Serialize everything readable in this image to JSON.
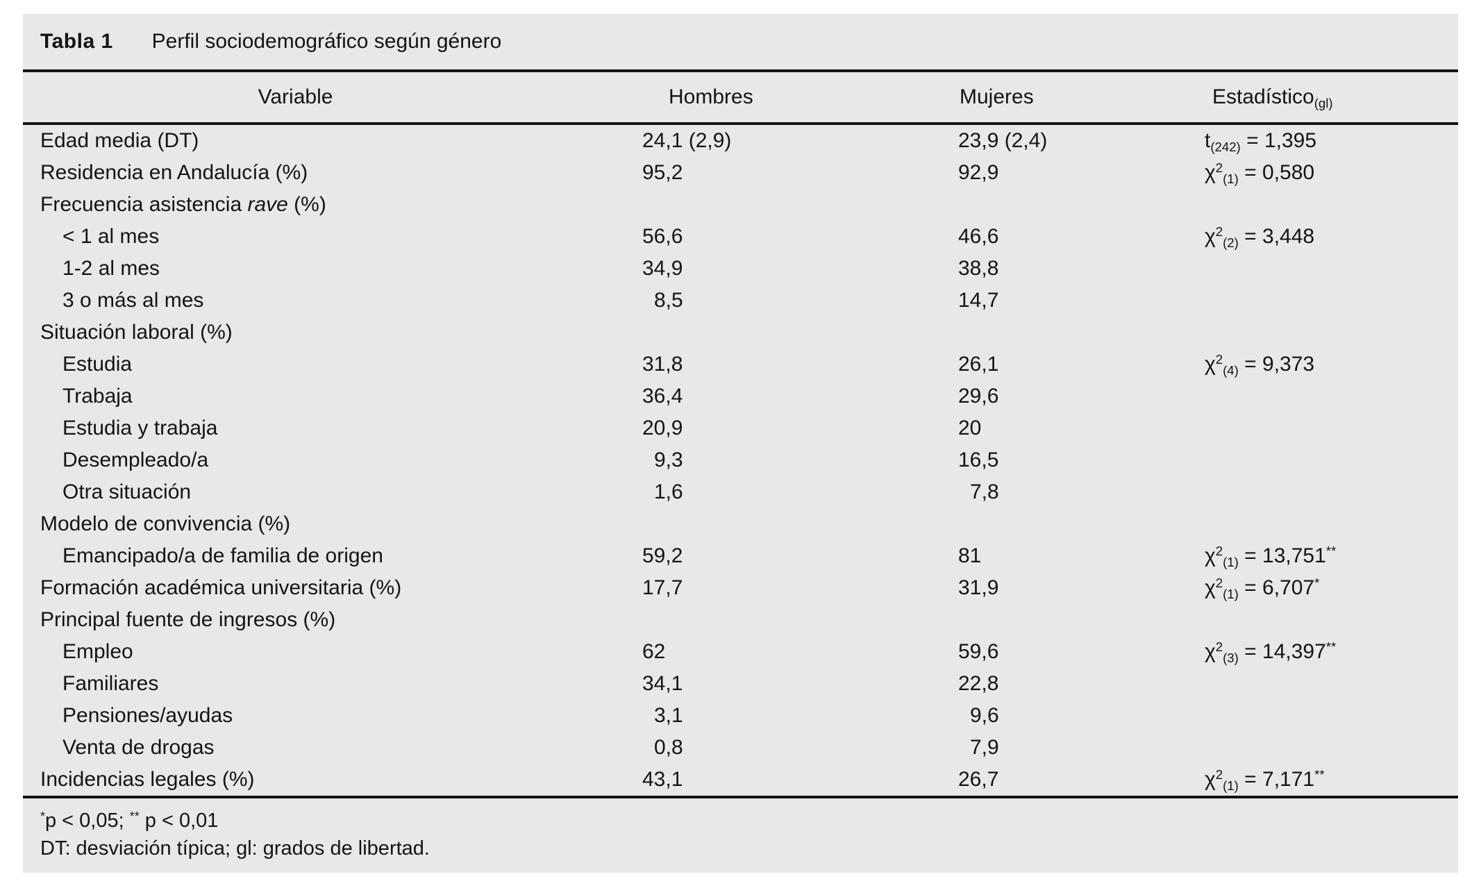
{
  "title": {
    "label": "Tabla 1",
    "text": "Perfil sociodemográfico según género"
  },
  "header": {
    "variable": "Variable",
    "hombres": "Hombres",
    "mujeres": "Mujeres",
    "estadistico": "Estadístico",
    "estadistico_sub": "(gl)"
  },
  "rows": [
    {
      "label": "Edad media (DT)",
      "indent": 0,
      "hombres": "24,1 (2,9)",
      "mujeres": "23,9 (2,4)",
      "stat": {
        "base": "t",
        "sup": "",
        "sub": "(242)",
        "eq": "=",
        "value": "1,395",
        "stars": ""
      }
    },
    {
      "label": "Residencia en Andalucía (%)",
      "indent": 0,
      "hombres": "95,2",
      "mujeres": "92,9",
      "stat": {
        "base": "χ",
        "sup": "2",
        "sub": "(1)",
        "eq": "=",
        "value": "0,580",
        "stars": ""
      }
    },
    {
      "label_parts": [
        {
          "t": "Frecuencia asistencia "
        },
        {
          "t": "rave",
          "italic": true
        },
        {
          "t": " (%)"
        }
      ],
      "indent": 0
    },
    {
      "label": "< 1 al mes",
      "indent": 1,
      "hombres": "56,6",
      "mujeres": "46,6",
      "stat": {
        "base": "χ",
        "sup": "2",
        "sub": "(2)",
        "eq": "=",
        "value": "3,448",
        "stars": ""
      }
    },
    {
      "label": "1-2 al mes",
      "indent": 1,
      "hombres": "34,9",
      "mujeres": "38,8"
    },
    {
      "label": "3 o más al mes",
      "indent": 1,
      "hombres": "8,5",
      "mujeres": "14,7"
    },
    {
      "label": "Situación laboral (%)",
      "indent": 0
    },
    {
      "label": "Estudia",
      "indent": 1,
      "hombres": "31,8",
      "mujeres": "26,1",
      "stat": {
        "base": "χ",
        "sup": "2",
        "sub": "(4)",
        "eq": "=",
        "value": "9,373",
        "stars": ""
      }
    },
    {
      "label": "Trabaja",
      "indent": 1,
      "hombres": "36,4",
      "mujeres": "29,6"
    },
    {
      "label": "Estudia y trabaja",
      "indent": 1,
      "hombres": "20,9",
      "mujeres": "20"
    },
    {
      "label": "Desempleado/a",
      "indent": 1,
      "hombres": "9,3",
      "mujeres": "16,5"
    },
    {
      "label": "Otra situación",
      "indent": 1,
      "hombres": "1,6",
      "mujeres": "7,8"
    },
    {
      "label": "Modelo de convivencia (%)",
      "indent": 0
    },
    {
      "label": "Emancipado/a de familia de origen",
      "indent": 1,
      "hombres": "59,2",
      "mujeres": "81",
      "stat": {
        "base": "χ",
        "sup": "2",
        "sub": "(1)",
        "eq": "=",
        "value": "13,751",
        "stars": "**"
      }
    },
    {
      "label": "Formación académica universitaria (%)",
      "indent": 0,
      "hombres": "17,7",
      "mujeres": "31,9",
      "stat": {
        "base": "χ",
        "sup": "2",
        "sub": "(1)",
        "eq": "=",
        "value": "6,707",
        "stars": "*"
      }
    },
    {
      "label": "Principal fuente de ingresos (%)",
      "indent": 0
    },
    {
      "label": "Empleo",
      "indent": 1,
      "hombres": "62",
      "mujeres": "59,6",
      "stat": {
        "base": "χ",
        "sup": "2",
        "sub": "(3)",
        "eq": "=",
        "value": "14,397",
        "stars": "**"
      }
    },
    {
      "label": "Familiares",
      "indent": 1,
      "hombres": "34,1",
      "mujeres": "22,8"
    },
    {
      "label": "Pensiones/ayudas",
      "indent": 1,
      "hombres": "3,1",
      "mujeres": "9,6"
    },
    {
      "label": "Venta de drogas",
      "indent": 1,
      "hombres": "0,8",
      "mujeres": "7,9"
    },
    {
      "label": "Incidencias legales (%)",
      "indent": 0,
      "hombres": "43,1",
      "mujeres": "26,7",
      "stat": {
        "base": "χ",
        "sup": "2",
        "sub": "(1)",
        "eq": "=",
        "value": "7,171",
        "stars": "**"
      }
    }
  ],
  "footnotes": {
    "line1_parts": [
      {
        "sup": "*"
      },
      {
        "t": "p < 0,05; "
      },
      {
        "sup": "**"
      },
      {
        "t": " p < 0,01"
      }
    ],
    "line2": "DT: desviación típica; gl: grados de libertad."
  },
  "colors": {
    "panel_bg": "#e8e8e8",
    "rule": "#141414",
    "text": "#141414"
  }
}
